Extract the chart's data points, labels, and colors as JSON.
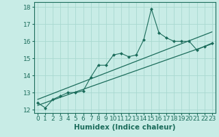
{
  "xlabel": "Humidex (Indice chaleur)",
  "xlim": [
    -0.5,
    23.5
  ],
  "ylim": [
    11.8,
    18.3
  ],
  "yticks": [
    12,
    13,
    14,
    15,
    16,
    17,
    18
  ],
  "xticks": [
    0,
    1,
    2,
    3,
    4,
    5,
    6,
    7,
    8,
    9,
    10,
    11,
    12,
    13,
    14,
    15,
    16,
    17,
    18,
    19,
    20,
    21,
    22,
    23
  ],
  "bg_color": "#c8ece6",
  "grid_color": "#a8d8d0",
  "line_color": "#1a6b5a",
  "line1_x": [
    0,
    1,
    2,
    3,
    4,
    5,
    6,
    7,
    8,
    9,
    10,
    11,
    12,
    13,
    14,
    15,
    16,
    17,
    18,
    19,
    20,
    21,
    22,
    23
  ],
  "line1_y": [
    12.4,
    12.1,
    12.6,
    12.8,
    13.0,
    13.0,
    13.1,
    13.9,
    14.6,
    14.6,
    15.2,
    15.3,
    15.1,
    15.2,
    16.1,
    17.9,
    16.5,
    16.2,
    16.0,
    16.0,
    16.0,
    15.5,
    15.7,
    15.9
  ],
  "line2_x": [
    0,
    23
  ],
  "line2_y": [
    12.25,
    15.85
  ],
  "line3_x": [
    0,
    23
  ],
  "line3_y": [
    12.6,
    16.55
  ],
  "tick_fontsize": 6.5,
  "xlabel_fontsize": 7.5
}
